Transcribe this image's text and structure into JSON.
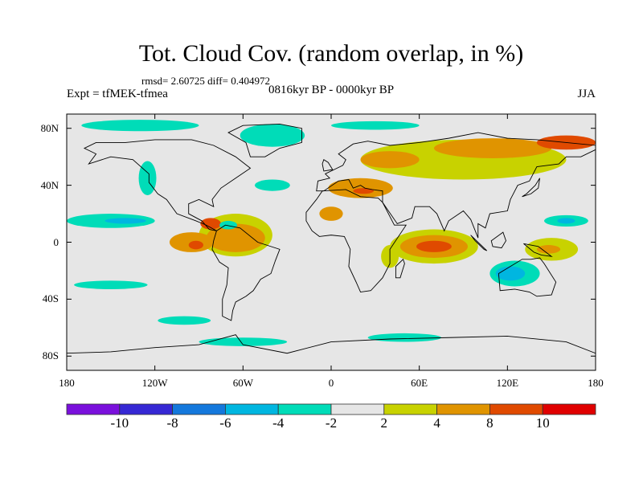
{
  "header": {
    "title": "Tot. Cloud Cov. (random overlap, in %)",
    "stats": "rmsd= 2.60725 diff= 0.404972",
    "experiment": "Expt = tfMEK-tfmea",
    "period": "0816kyr BP - 0000kyr BP",
    "season": "JJA"
  },
  "chart_data": {
    "type": "heatmap",
    "projection": "cylindrical-equidistant",
    "lon_range": [
      -180,
      180
    ],
    "lat_range": [
      -90,
      90
    ],
    "y_ticks": [
      {
        "lat": 80,
        "label": "80N"
      },
      {
        "lat": 40,
        "label": "40N"
      },
      {
        "lat": 0,
        "label": "0"
      },
      {
        "lat": -40,
        "label": "40S"
      },
      {
        "lat": -80,
        "label": "80S"
      }
    ],
    "x_ticks": [
      {
        "lon": -180,
        "label": "180"
      },
      {
        "lon": -120,
        "label": "120W"
      },
      {
        "lon": -60,
        "label": "60W"
      },
      {
        "lon": 0,
        "label": "0"
      },
      {
        "lon": 60,
        "label": "60E"
      },
      {
        "lon": 120,
        "label": "120E"
      },
      {
        "lon": 180,
        "label": "180"
      }
    ],
    "levels": [
      -10,
      -8,
      -6,
      -4,
      -2,
      2,
      4,
      8,
      10
    ],
    "level_labels": [
      "-10",
      "-8",
      "-6",
      "-4",
      "-2",
      "2",
      "4",
      "8",
      "10"
    ],
    "colors": [
      "#7a10dc",
      "#3628d4",
      "#1478dc",
      "#00b6e0",
      "#00dcb8",
      "#e6e6e6",
      "#c8d200",
      "#e09400",
      "#e04a00",
      "#e00000"
    ],
    "regions": [
      {
        "lon": 90,
        "lat": 58,
        "rlon": 70,
        "rlat": 14,
        "value": 3
      },
      {
        "lon": 110,
        "lat": 66,
        "rlon": 40,
        "rlat": 7,
        "value": 5
      },
      {
        "lon": 160,
        "lat": 70,
        "rlon": 20,
        "rlat": 5,
        "value": 9
      },
      {
        "lon": 40,
        "lat": 58,
        "rlon": 20,
        "rlat": 6,
        "value": 5
      },
      {
        "lon": 20,
        "lat": 38,
        "rlon": 22,
        "rlat": 7,
        "value": 5
      },
      {
        "lon": 22,
        "lat": 36,
        "rlon": 7,
        "rlat": 2,
        "value": 9
      },
      {
        "lon": -65,
        "lat": 5,
        "rlon": 25,
        "rlat": 15,
        "value": 3
      },
      {
        "lon": -65,
        "lat": 3,
        "rlon": 20,
        "rlat": 10,
        "value": 5
      },
      {
        "lon": -95,
        "lat": 0,
        "rlon": 15,
        "rlat": 7,
        "value": 5
      },
      {
        "lon": -92,
        "lat": -2,
        "rlon": 5,
        "rlat": 3,
        "value": 9
      },
      {
        "lon": -82,
        "lat": 13,
        "rlon": 7,
        "rlat": 4,
        "value": 9
      },
      {
        "lon": -70,
        "lat": 12,
        "rlon": 6,
        "rlat": 3,
        "value": -3
      },
      {
        "lon": 70,
        "lat": -3,
        "rlon": 30,
        "rlat": 12,
        "value": 3
      },
      {
        "lon": 70,
        "lat": -3,
        "rlon": 23,
        "rlat": 8,
        "value": 5
      },
      {
        "lon": 70,
        "lat": -3,
        "rlon": 12,
        "rlat": 4,
        "value": 9
      },
      {
        "lon": 0,
        "lat": 20,
        "rlon": 8,
        "rlat": 5,
        "value": 5
      },
      {
        "lon": 125,
        "lat": -22,
        "rlon": 17,
        "rlat": 9,
        "value": -3
      },
      {
        "lon": 122,
        "lat": -22,
        "rlon": 10,
        "rlat": 5,
        "value": -5
      },
      {
        "lon": 150,
        "lat": -5,
        "rlon": 18,
        "rlat": 8,
        "value": 3
      },
      {
        "lon": 148,
        "lat": -5,
        "rlon": 8,
        "rlat": 3,
        "value": 5
      },
      {
        "lon": 160,
        "lat": 15,
        "rlon": 15,
        "rlat": 4,
        "value": -3
      },
      {
        "lon": 160,
        "lat": 15,
        "rlon": 6,
        "rlat": 2,
        "value": -5
      },
      {
        "lon": -150,
        "lat": 15,
        "rlon": 30,
        "rlat": 5,
        "value": -3
      },
      {
        "lon": -140,
        "lat": 15,
        "rlon": 14,
        "rlat": 2,
        "value": -5
      },
      {
        "lon": -125,
        "lat": 45,
        "rlon": 6,
        "rlat": 12,
        "value": -3
      },
      {
        "lon": -40,
        "lat": 75,
        "rlon": 22,
        "rlat": 8,
        "value": -3
      },
      {
        "lon": -130,
        "lat": 82,
        "rlon": 40,
        "rlat": 4,
        "value": -3
      },
      {
        "lon": 30,
        "lat": 82,
        "rlon": 30,
        "rlat": 3,
        "value": -3
      },
      {
        "lon": -60,
        "lat": -70,
        "rlon": 30,
        "rlat": 3,
        "value": -3
      },
      {
        "lon": 50,
        "lat": -67,
        "rlon": 25,
        "rlat": 3,
        "value": -3
      },
      {
        "lon": -150,
        "lat": -30,
        "rlon": 25,
        "rlat": 3,
        "value": -3
      },
      {
        "lon": -100,
        "lat": -55,
        "rlon": 18,
        "rlat": 3,
        "value": -3
      },
      {
        "lon": 40,
        "lat": -10,
        "rlon": 6,
        "rlat": 8,
        "value": 3
      },
      {
        "lon": -40,
        "lat": 40,
        "rlon": 12,
        "rlat": 4,
        "value": -3
      }
    ]
  }
}
